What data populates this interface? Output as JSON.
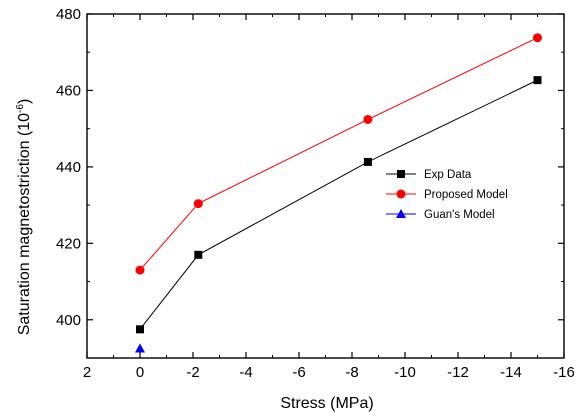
{
  "chart_data": {
    "type": "line",
    "x": [
      0,
      -2.2,
      -8.6,
      -15
    ],
    "series": [
      {
        "name": "Exp Data",
        "values": [
          397.5,
          417.0,
          441.3,
          462.7
        ],
        "color": "#000000",
        "marker": "square"
      },
      {
        "name": "Proposed Model",
        "values": [
          413.0,
          430.4,
          452.4,
          473.8
        ],
        "color": "#ff0000",
        "marker": "circle"
      },
      {
        "name": "Guan's Model",
        "points": [
          {
            "x": 0,
            "y": 392.5
          }
        ],
        "color": "#0000ff",
        "marker": "triangle"
      }
    ],
    "xlabel": "Stress (MPa)",
    "ylabel": "Saturation magnetostriction (10",
    "ylabel_superscript": "-6",
    "ylabel_suffix": ")",
    "xlim": [
      2,
      -16
    ],
    "ylim": [
      390,
      480
    ],
    "x_ticks": [
      2,
      0,
      -2,
      -4,
      -6,
      -8,
      -10,
      -12,
      -14,
      -16
    ],
    "y_ticks": [
      400,
      420,
      440,
      460,
      480
    ],
    "grid": false,
    "legend_position": "right"
  }
}
